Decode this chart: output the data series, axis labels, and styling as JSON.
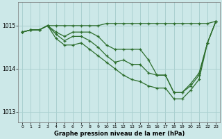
{
  "bg_color": "#cce8e8",
  "grid_color": "#aad0d0",
  "line_color": "#2d6e2d",
  "text_color": "#000000",
  "xlabel": "Graphe pression niveau de la mer (hPa)",
  "xlim": [
    -0.5,
    23.5
  ],
  "ylim": [
    1012.75,
    1015.55
  ],
  "yticks": [
    1013,
    1014,
    1015
  ],
  "xticks": [
    0,
    1,
    2,
    3,
    4,
    5,
    6,
    7,
    8,
    9,
    10,
    11,
    12,
    13,
    14,
    15,
    16,
    17,
    18,
    19,
    20,
    21,
    22,
    23
  ],
  "series": [
    [
      1014.85,
      1014.9,
      1014.9,
      1015.0,
      1015.0,
      1015.0,
      1015.0,
      1015.0,
      1015.0,
      1015.0,
      1015.05,
      1015.05,
      1015.05,
      1015.05,
      1015.05,
      1015.05,
      1015.05,
      1015.05,
      1015.05,
      1015.05,
      1015.05,
      1015.05,
      1015.05,
      1015.1
    ],
    [
      1014.85,
      1014.9,
      1014.9,
      1015.0,
      1014.85,
      1014.75,
      1014.85,
      1014.85,
      1014.85,
      1014.75,
      1014.55,
      1014.45,
      1014.45,
      1014.45,
      1014.45,
      1014.2,
      1013.85,
      1013.85,
      1013.45,
      1013.45,
      1013.65,
      1013.9,
      1014.6,
      1015.1
    ],
    [
      1014.85,
      1014.9,
      1014.9,
      1015.0,
      1014.8,
      1014.65,
      1014.75,
      1014.75,
      1014.65,
      1014.5,
      1014.3,
      1014.15,
      1014.2,
      1014.1,
      1014.1,
      1013.9,
      1013.85,
      1013.85,
      1013.45,
      1013.45,
      1013.6,
      1013.85,
      1014.6,
      1015.1
    ],
    [
      1014.85,
      1014.9,
      1014.9,
      1015.0,
      1014.7,
      1014.55,
      1014.55,
      1014.6,
      1014.45,
      1014.3,
      1014.15,
      1014.0,
      1013.85,
      1013.75,
      1013.7,
      1013.6,
      1013.55,
      1013.55,
      1013.3,
      1013.3,
      1013.5,
      1013.75,
      1014.6,
      1015.1
    ]
  ]
}
